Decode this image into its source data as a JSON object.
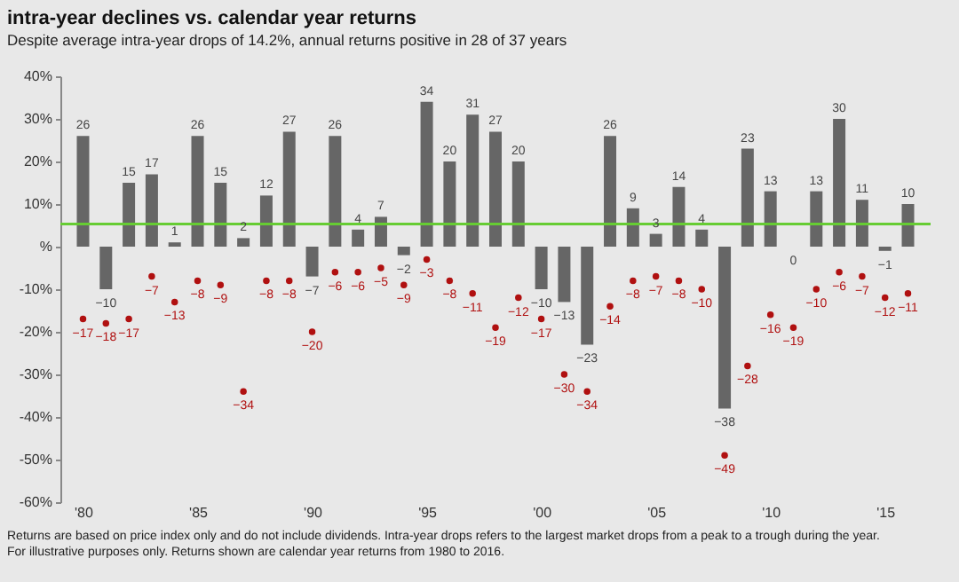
{
  "chart_data": {
    "type": "bar",
    "title": "intra-year declines vs. calendar year returns",
    "subtitle": "Despite average intra-year drops of 14.2%, annual returns positive in 28 of 37 years",
    "annotations": [
      "Returns are based on price index only and do not include dividends. Intra-year drops refers to the largest market drops from a peak to a trough during the year. For illustrative purposes only. Returns shown are calendar year returns from 1980 to 2016."
    ],
    "x": [
      1980,
      1981,
      1982,
      1983,
      1984,
      1985,
      1986,
      1987,
      1988,
      1989,
      1990,
      1991,
      1992,
      1993,
      1994,
      1995,
      1996,
      1997,
      1998,
      1999,
      2000,
      2001,
      2002,
      2003,
      2004,
      2005,
      2006,
      2007,
      2008,
      2009,
      2010,
      2011,
      2012,
      2013,
      2014,
      2015,
      2016
    ],
    "series": [
      {
        "color": "#666666",
        "values": [
          26,
          -10,
          15,
          17,
          1,
          26,
          15,
          2,
          12,
          27,
          -7,
          26,
          4,
          7,
          -2,
          34,
          20,
          31,
          27,
          20,
          -10,
          -13,
          -23,
          26,
          9,
          3,
          14,
          4,
          -38,
          23,
          13,
          0,
          13,
          30,
          11,
          -1,
          10
        ]
      },
      {
        "type": "scatter",
        "color": "#b01010",
        "values": [
          -17,
          -18,
          -17,
          -7,
          -13,
          -8,
          -9,
          -34,
          -8,
          -8,
          -20,
          -6,
          -6,
          -5,
          -9,
          -3,
          -8,
          -11,
          -19,
          -12,
          -17,
          -30,
          -34,
          -14,
          -8,
          -7,
          -8,
          -10,
          -49,
          -28,
          -16,
          -19,
          -10,
          -6,
          -7,
          -12,
          -11
        ]
      }
    ],
    "xlim": [
      1979.4,
      2016.6
    ],
    "xticks": [
      {
        "value": 1980,
        "label": "'80"
      },
      {
        "value": 1985,
        "label": "'85"
      },
      {
        "value": 1990,
        "label": "'90"
      },
      {
        "value": 1995,
        "label": "'95"
      },
      {
        "value": 2000,
        "label": "'00"
      },
      {
        "value": 2005,
        "label": "'05"
      },
      {
        "value": 2010,
        "label": "'10"
      },
      {
        "value": 2015,
        "label": "'15"
      }
    ],
    "ylim": [
      -60,
      40
    ],
    "yticks": [
      {
        "value": -60,
        "label": "-60%"
      },
      {
        "value": -50,
        "label": "-50%"
      },
      {
        "value": -40,
        "label": "-40%"
      },
      {
        "value": -30,
        "label": "-30%"
      },
      {
        "value": -20,
        "label": "-20%"
      },
      {
        "value": -10,
        "label": "-10%"
      },
      {
        "value": 0,
        "label": "%"
      },
      {
        "value": 10,
        "label": "10%"
      },
      {
        "value": 20,
        "label": "20%"
      },
      {
        "value": 30,
        "label": "30%"
      },
      {
        "value": 40,
        "label": "40%"
      }
    ],
    "ref_lines": [
      {
        "axis": "y",
        "value": 5.3,
        "color": "#66cc33"
      }
    ],
    "data_labels": true,
    "marker": "circle",
    "grid": false
  }
}
